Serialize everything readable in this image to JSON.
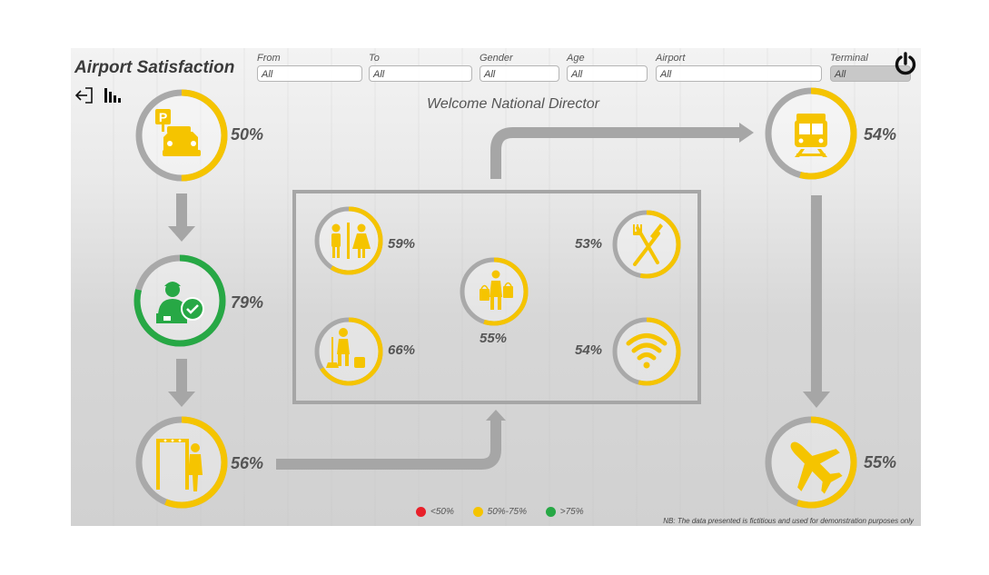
{
  "header": {
    "title": "Airport Satisfaction",
    "welcome": "Welcome National Director"
  },
  "filters": [
    {
      "label": "From",
      "value": "All"
    },
    {
      "label": "To",
      "value": "All"
    },
    {
      "label": "Gender",
      "value": "All"
    },
    {
      "label": "Age",
      "value": "All"
    },
    {
      "label": "Airport",
      "value": "All"
    },
    {
      "label": "Terminal",
      "value": "All"
    }
  ],
  "toolbar": {
    "back_icon": "back-arrow-icon",
    "chart_icon": "bar-chart-icon",
    "power_icon": "power-icon"
  },
  "kpis": {
    "parking": {
      "icon": "parking-taxi-icon",
      "percent": 0.5,
      "label": "50%",
      "color": "#f5c400"
    },
    "checkin": {
      "icon": "check-in-agent-icon",
      "percent": 0.79,
      "label": "79%",
      "color": "#27a845"
    },
    "security": {
      "icon": "security-scanner-icon",
      "percent": 0.56,
      "label": "56%",
      "color": "#f5c400"
    },
    "restrooms": {
      "icon": "restroom-icon",
      "percent": 0.59,
      "label": "59%",
      "color": "#f5c400"
    },
    "cleaning": {
      "icon": "cleaning-icon",
      "percent": 0.66,
      "label": "66%",
      "color": "#f5c400"
    },
    "shopping": {
      "icon": "shopping-icon",
      "percent": 0.55,
      "label": "55%",
      "color": "#f5c400"
    },
    "dining": {
      "icon": "dining-icon",
      "percent": 0.53,
      "label": "53%",
      "color": "#f5c400"
    },
    "wifi": {
      "icon": "wifi-icon",
      "percent": 0.54,
      "label": "54%",
      "color": "#f5c400"
    },
    "train": {
      "icon": "train-icon",
      "percent": 0.54,
      "label": "54%",
      "color": "#f5c400"
    },
    "flight": {
      "icon": "airplane-icon",
      "percent": 0.55,
      "label": "55%",
      "color": "#f5c400"
    }
  },
  "legend": [
    {
      "label": "<50%",
      "color": "#e8202a"
    },
    {
      "label": "50%-75%",
      "color": "#f5c400"
    },
    {
      "label": ">75%",
      "color": "#27a845"
    }
  ],
  "footer": {
    "note": "NB: The data presented is fictitious and used for demonstration purposes only"
  },
  "colors": {
    "ring_track": "#a9a9a9",
    "flow": "#a6a6a6",
    "yellow": "#f5c400",
    "green": "#27a845"
  }
}
